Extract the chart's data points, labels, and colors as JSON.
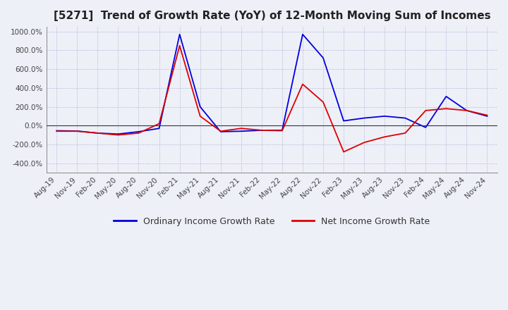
{
  "title": "[5271]  Trend of Growth Rate (YoY) of 12-Month Moving Sum of Incomes",
  "title_fontsize": 11,
  "ylim": [
    -500,
    1050
  ],
  "yticks": [
    -400,
    -200,
    0,
    200,
    400,
    600,
    800,
    1000
  ],
  "background_color": "#eef0f8",
  "plot_bg_color": "#eef0f8",
  "grid_color": "#aaaacc",
  "line_color_ordinary": "#0000dd",
  "line_color_net": "#dd0000",
  "legend_ordinary": "Ordinary Income Growth Rate",
  "legend_net": "Net Income Growth Rate",
  "dates": [
    "Aug-19",
    "Nov-19",
    "Feb-20",
    "May-20",
    "Aug-20",
    "Nov-20",
    "Feb-21",
    "May-21",
    "Aug-21",
    "Nov-21",
    "Feb-22",
    "May-22",
    "Aug-22",
    "Nov-22",
    "Feb-23",
    "May-23",
    "Aug-23",
    "Nov-23",
    "Feb-24",
    "May-24",
    "Aug-24",
    "Nov-24"
  ],
  "ordinary": [
    -55,
    -58,
    -80,
    -90,
    -65,
    -30,
    970,
    200,
    -65,
    -60,
    -50,
    -50,
    970,
    720,
    50,
    80,
    100,
    80,
    -20,
    310,
    160,
    100
  ],
  "net": [
    -60,
    -60,
    -80,
    -100,
    -80,
    20,
    850,
    100,
    -60,
    -30,
    -50,
    -55,
    440,
    250,
    -280,
    -180,
    -120,
    -80,
    160,
    180,
    160,
    110
  ]
}
